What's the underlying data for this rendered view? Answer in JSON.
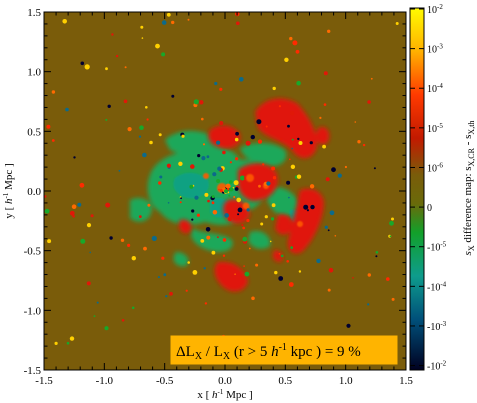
{
  "chart_data": {
    "type": "heatmap",
    "title": "",
    "xlim": [
      -1.5,
      1.5
    ],
    "ylim": [
      -1.5,
      1.5
    ],
    "x_ticks": [
      "-1.5",
      "-1.0",
      "-0.5",
      "0.0",
      "0.5",
      "1.0",
      "1.5"
    ],
    "y_ticks": [
      "-1.5",
      "-1.0",
      "-0.5",
      "0.0",
      "0.5",
      "1.0",
      "1.5"
    ],
    "x_tick_values": [
      -1.5,
      -1.0,
      -0.5,
      0.0,
      0.5,
      1.0,
      1.5
    ],
    "y_tick_values": [
      -1.5,
      -1.0,
      -0.5,
      0.0,
      0.5,
      1.0,
      1.5
    ],
    "x_label_prefix": "x [ ",
    "x_label_h": "h",
    "x_label_sup": "-1",
    "x_label_unit": " Mpc ]",
    "y_label_prefix": "y [ ",
    "y_label_h": "h",
    "y_label_sup": "-1",
    "y_label_unit": " Mpc ]",
    "colorbar": {
      "ticks": [
        "10",
        "10",
        "10",
        "10",
        "10",
        "0",
        "-10",
        "-10",
        "-10",
        "-10"
      ],
      "tick_exponents": [
        "-2",
        "-3",
        "-4",
        "-5",
        "-6",
        "",
        "-5",
        "-4",
        "-3",
        "-2"
      ],
      "tick_values": [
        0.01,
        0.001,
        0.0001,
        1e-05,
        1e-06,
        0,
        -1e-05,
        -0.0001,
        -0.001,
        -0.01
      ],
      "bottom_exponent_shown": "-2",
      "label_main": "s",
      "label_sub1": "X",
      "label_text": " difference map: s",
      "label_sub2": "X,CR",
      "label_dash": " - s",
      "label_sub3": "X,th",
      "colors": [
        "#ffff00",
        "#ff9900",
        "#ff2a00",
        "#c41400",
        "#7a5c0a",
        "#18a82a",
        "#10a08a",
        "#005a8a",
        "#000030"
      ]
    },
    "annotation": {
      "text_pre": "ΔL",
      "sub1": "X",
      "text_mid": " / L",
      "sub2": "X",
      "text_paren": " (r > 5 ",
      "h": "h",
      "sup": "-1",
      "text_post": " kpc ) = 9 %"
    },
    "colors": {
      "background_field": "#7a5c0a",
      "positive_region": "#e01808",
      "negative_region": "#1aa85a",
      "annotation_box": "#ffb400"
    }
  }
}
